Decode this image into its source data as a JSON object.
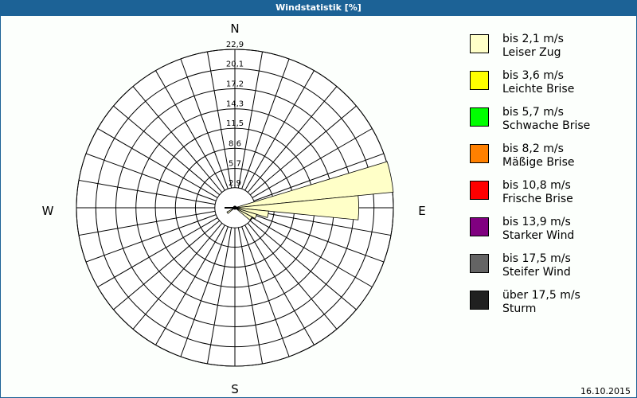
{
  "title": "Windstatistik [%]",
  "date": "16.10.2015",
  "chart_data": {
    "type": "polar-bar",
    "title": "Windstatistik [%]",
    "compass": [
      "N",
      "E",
      "S",
      "W"
    ],
    "rmax": 22.9,
    "ring_labels": [
      "2,9",
      "5,7",
      "8,6",
      "11,5",
      "14,3",
      "17,2",
      "20,1",
      "22,9"
    ],
    "ring_values": [
      2.9,
      5.7,
      8.6,
      11.5,
      14.3,
      17.2,
      20.1,
      22.9
    ],
    "sector_width_deg": 11.25,
    "series": [
      {
        "color": "#ffffc8",
        "directions_deg": [
          78.75,
          90,
          101.25,
          112.5,
          123.75,
          236.25
        ],
        "values": [
          23.0,
          17.9,
          4.9,
          3.3,
          2.8,
          1.3
        ]
      }
    ],
    "legend": [
      {
        "range": "bis 2,1 m/s",
        "name": "Leiser Zug",
        "color": "#ffffc8"
      },
      {
        "range": "bis 3,6 m/s",
        "name": "Leichte Brise",
        "color": "#ffff00"
      },
      {
        "range": "bis 5,7 m/s",
        "name": "Schwache Brise",
        "color": "#00ff00"
      },
      {
        "range": "bis 8,2 m/s",
        "name": "Mäßige Brise",
        "color": "#ff8000"
      },
      {
        "range": "bis 10,8 m/s",
        "name": "Frische Brise",
        "color": "#ff0000"
      },
      {
        "range": "bis 13,9 m/s",
        "name": "Starker Wind",
        "color": "#800080"
      },
      {
        "range": "bis 17,5 m/s",
        "name": "Steifer Wind",
        "color": "#646464"
      },
      {
        "range": "über 17,5 m/s",
        "name": "Sturm",
        "color": "#202020"
      }
    ],
    "legend_position": "right"
  }
}
